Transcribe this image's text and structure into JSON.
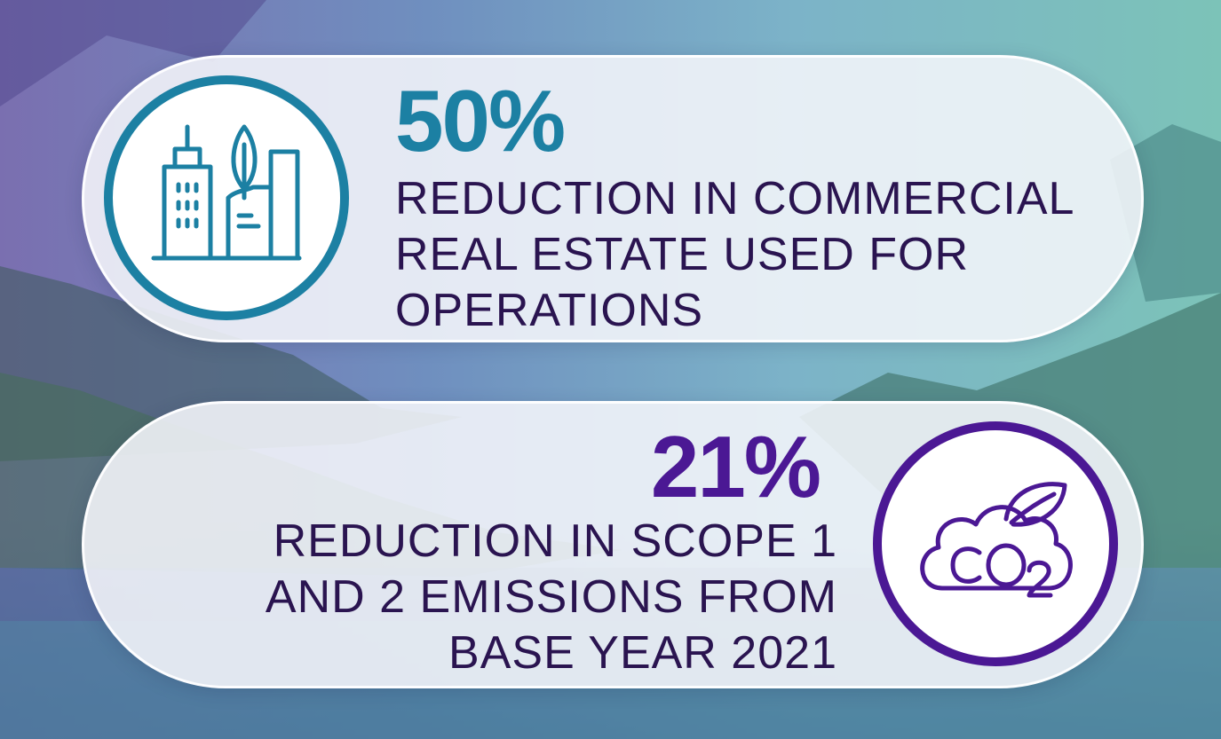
{
  "stats": [
    {
      "value": "50%",
      "lines": [
        "REDUCTION IN COMMERCIAL",
        "REAL ESTATE USED FOR",
        "OPERATIONS"
      ],
      "icon": "buildings-leaf-icon",
      "color": "#1c80a3"
    },
    {
      "value": "21%",
      "lines": [
        "REDUCTION IN SCOPE 1",
        "AND 2 EMISSIONS FROM",
        "BASE YEAR 2021"
      ],
      "icon": "co2-cloud-leaf-icon",
      "color": "#4b1894"
    }
  ]
}
